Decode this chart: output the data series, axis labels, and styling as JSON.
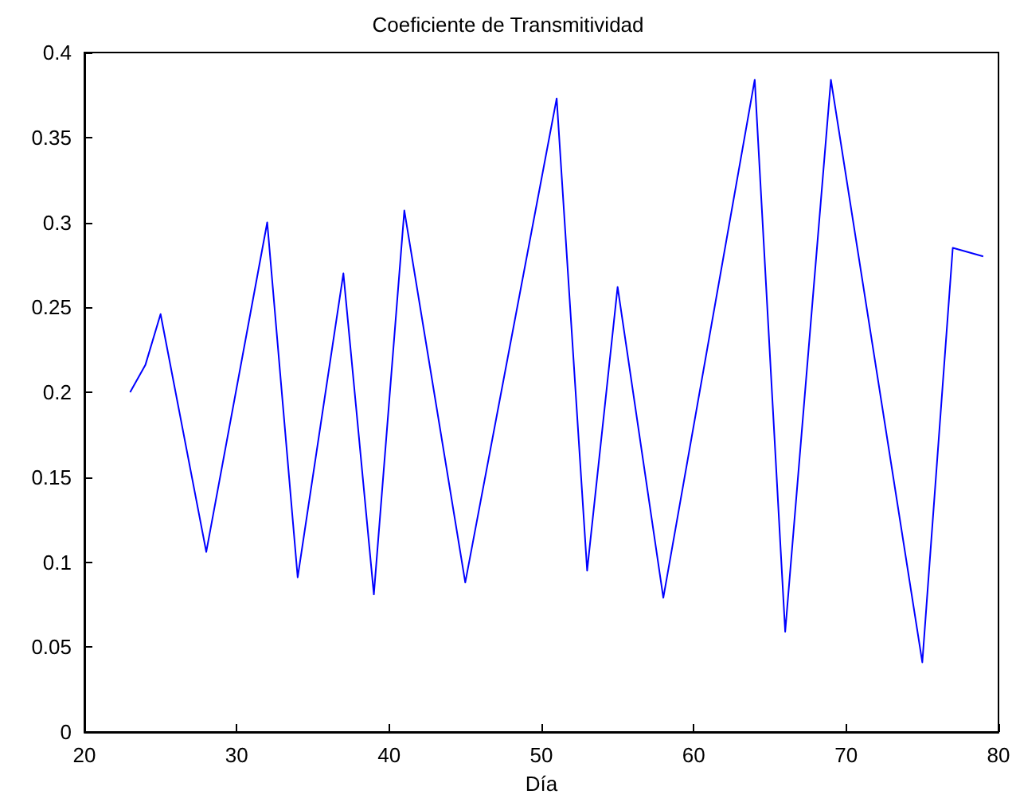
{
  "chart_data": {
    "type": "line",
    "title": "Coeficiente de Transmitividad",
    "xlabel": "Día",
    "x": [
      23,
      24,
      25,
      28,
      32,
      34,
      37,
      39,
      41,
      45,
      51,
      53,
      55,
      58,
      64,
      66,
      69,
      75,
      77,
      79
    ],
    "series": [
      {
        "color": "#0000ff",
        "values": [
          0.2,
          0.216,
          0.246,
          0.106,
          0.3,
          0.091,
          0.27,
          0.081,
          0.307,
          0.088,
          0.373,
          0.095,
          0.262,
          0.079,
          0.384,
          0.059,
          0.384,
          0.041,
          0.285,
          0.28
        ]
      }
    ],
    "xlim": [
      20,
      80
    ],
    "xticks": [
      20,
      30,
      40,
      50,
      60,
      70,
      80
    ],
    "ylim": [
      0,
      0.4
    ],
    "yticks": [
      0,
      0.05,
      0.1,
      0.15,
      0.2,
      0.25,
      0.3,
      0.35,
      0.4
    ],
    "grid": false,
    "marker": "none",
    "line_style": "solid"
  }
}
